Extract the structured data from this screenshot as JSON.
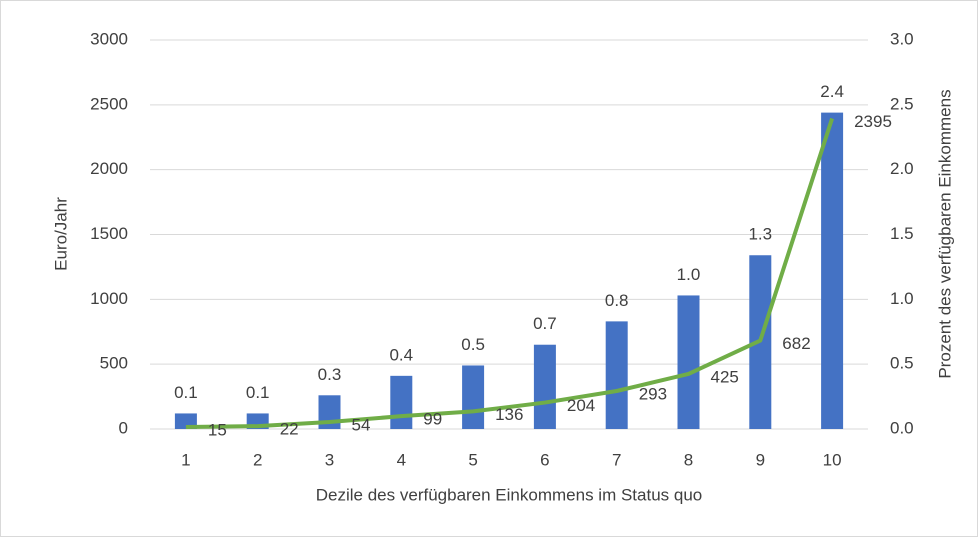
{
  "chart_data": {
    "type": "combo",
    "xlabel": "Dezile des verfügbaren Einkommens im Status quo",
    "ylabel": "Euro/Jahr",
    "y2label": "Prozent des verfügbaren Einkommens",
    "categories": [
      "1",
      "2",
      "3",
      "4",
      "5",
      "6",
      "7",
      "8",
      "9",
      "10"
    ],
    "series": [
      {
        "type": "bar",
        "axis": "y2",
        "color": "#4472c4",
        "values": [
          0.12,
          0.12,
          0.26,
          0.41,
          0.49,
          0.65,
          0.83,
          1.03,
          1.34,
          2.44
        ],
        "value_labels": [
          "0.1",
          "0.1",
          "0.3",
          "0.4",
          "0.5",
          "0.7",
          "0.8",
          "1.0",
          "1.3",
          "2.4"
        ]
      },
      {
        "type": "line",
        "color": "#70ad47",
        "values": [
          15,
          22,
          54,
          99,
          136,
          204,
          293,
          425,
          682,
          2395
        ]
      }
    ],
    "ylim": [
      0,
      3000
    ],
    "yticks": [
      0,
      500,
      1000,
      1500,
      2000,
      2500,
      3000
    ],
    "y2lim": [
      0,
      3
    ],
    "y2ticks": [
      {
        "value": 0,
        "label": "0.0"
      },
      0.5,
      {
        "value": 1,
        "label": "1.0"
      },
      1.5,
      {
        "value": 2,
        "label": "2.0"
      },
      2.5,
      {
        "value": 3,
        "label": "3.0"
      }
    ],
    "grid": true
  }
}
